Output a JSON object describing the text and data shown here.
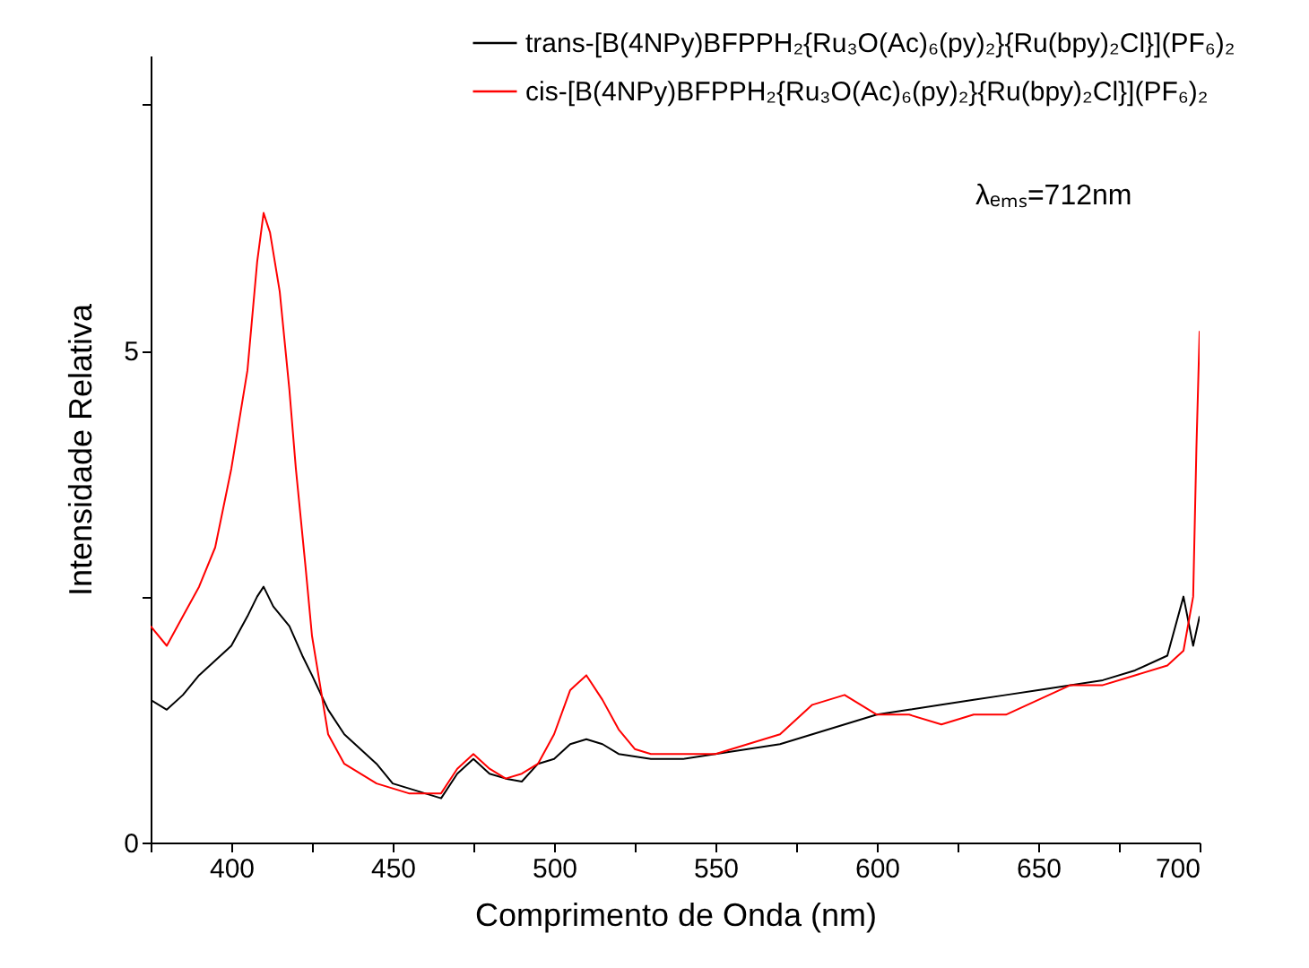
{
  "chart_data": {
    "type": "line",
    "xlabel": "Comprimento de Onda (nm)",
    "ylabel": "Intensidade Relativa",
    "annotations": [
      "λₑₘₛ=712nm"
    ],
    "xlim": [
      375,
      700
    ],
    "ylim": [
      0,
      8
    ],
    "xticks": [
      {
        "value": 375,
        "label": null
      },
      400,
      {
        "value": 425,
        "label": null
      },
      450,
      {
        "value": 475,
        "label": null
      },
      500,
      {
        "value": 525,
        "label": null
      },
      550,
      {
        "value": 575,
        "label": null
      },
      600,
      {
        "value": 625,
        "label": null
      },
      650,
      {
        "value": 675,
        "label": null
      },
      700
    ],
    "yticks": [
      0,
      {
        "value": 2.5,
        "label": null
      },
      5,
      {
        "value": 7.5,
        "label": null
      }
    ],
    "grid": false,
    "legend": "top right",
    "marker": "none",
    "line_style": "solid",
    "series": [
      {
        "name": "trans-[B(4NPy)BFPPH₂{Ru₃O(Ac)₆(py)₂}{Ru(bpy)₂Cl}](PF₆)₂",
        "color": "#000000",
        "x": [
          375,
          380,
          385,
          390,
          395,
          400,
          405,
          408,
          410,
          413,
          418,
          422,
          425,
          430,
          435,
          440,
          445,
          450,
          455,
          460,
          465,
          470,
          475,
          480,
          485,
          490,
          495,
          500,
          505,
          510,
          515,
          520,
          530,
          540,
          550,
          560,
          570,
          580,
          590,
          600,
          610,
          620,
          630,
          640,
          650,
          660,
          670,
          680,
          690,
          695,
          698,
          700
        ],
        "values": [
          1.45,
          1.35,
          1.5,
          1.7,
          1.85,
          2.0,
          2.3,
          2.5,
          2.6,
          2.4,
          2.2,
          1.9,
          1.7,
          1.35,
          1.1,
          0.95,
          0.8,
          0.6,
          0.55,
          0.5,
          0.45,
          0.7,
          0.85,
          0.7,
          0.65,
          0.62,
          0.8,
          0.85,
          1.0,
          1.05,
          1.0,
          0.9,
          0.85,
          0.85,
          0.9,
          0.95,
          1.0,
          1.1,
          1.2,
          1.3,
          1.35,
          1.4,
          1.45,
          1.5,
          1.55,
          1.6,
          1.65,
          1.75,
          1.9,
          2.5,
          2.0,
          2.3
        ]
      },
      {
        "name": "cis-[B(4NPy)BFPPH₂{Ru₃O(Ac)₆(py)₂}{Ru(bpy)₂Cl}](PF₆)₂",
        "color": "#ff0000",
        "x": [
          375,
          380,
          385,
          390,
          395,
          400,
          405,
          408,
          410,
          412,
          415,
          418,
          420,
          423,
          425,
          428,
          430,
          435,
          440,
          445,
          450,
          455,
          460,
          465,
          470,
          475,
          480,
          485,
          490,
          495,
          500,
          505,
          510,
          515,
          520,
          525,
          530,
          540,
          550,
          560,
          570,
          580,
          590,
          600,
          610,
          620,
          630,
          640,
          650,
          660,
          670,
          680,
          690,
          695,
          698,
          699,
          700
        ],
        "values": [
          2.2,
          2.0,
          2.3,
          2.6,
          3.0,
          3.8,
          4.8,
          5.9,
          6.4,
          6.2,
          5.6,
          4.6,
          3.8,
          2.8,
          2.1,
          1.5,
          1.1,
          0.8,
          0.7,
          0.6,
          0.55,
          0.5,
          0.5,
          0.5,
          0.75,
          0.9,
          0.75,
          0.65,
          0.7,
          0.8,
          1.1,
          1.55,
          1.7,
          1.45,
          1.15,
          0.95,
          0.9,
          0.9,
          0.9,
          1.0,
          1.1,
          1.4,
          1.5,
          1.3,
          1.3,
          1.2,
          1.3,
          1.3,
          1.45,
          1.6,
          1.6,
          1.7,
          1.8,
          1.95,
          2.5,
          4.0,
          5.2
        ]
      }
    ]
  }
}
